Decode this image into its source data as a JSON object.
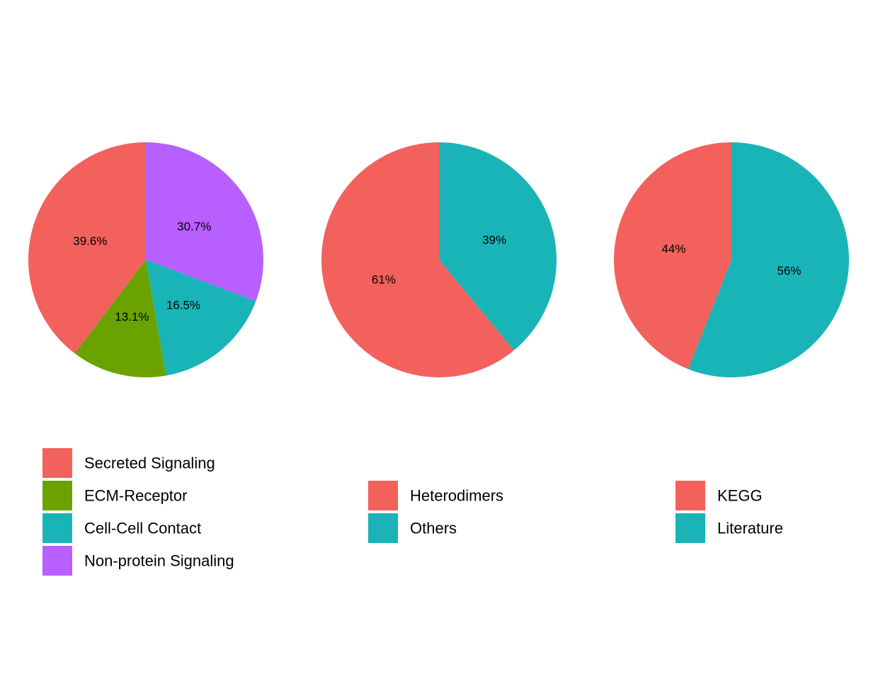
{
  "chart_data": [
    {
      "type": "pie",
      "title": "",
      "start_angle_deg": 0,
      "direction": "clockwise",
      "slices": [
        {
          "label": "Non-protein Signaling",
          "value": 30.7,
          "display": "30.7%",
          "color": "#B75FFF"
        },
        {
          "label": "Cell-Cell Contact",
          "value": 16.5,
          "display": "16.5%",
          "color": "#19B4B8"
        },
        {
          "label": "ECM-Receptor",
          "value": 13.1,
          "display": "13.1%",
          "color": "#6AA200"
        },
        {
          "label": "Secreted Signaling",
          "value": 39.6,
          "display": "39.6%",
          "color": "#F2615C"
        }
      ],
      "legend": {
        "placement": "bottom-left",
        "entries": [
          {
            "label": "Secreted Signaling",
            "color": "#F2615C"
          },
          {
            "label": "ECM-Receptor",
            "color": "#6AA200"
          },
          {
            "label": "Cell-Cell Contact",
            "color": "#19B4B8"
          },
          {
            "label": "Non-protein Signaling",
            "color": "#B75FFF"
          }
        ]
      }
    },
    {
      "type": "pie",
      "title": "",
      "start_angle_deg": 0,
      "direction": "clockwise",
      "slices": [
        {
          "label": "Others",
          "value": 39,
          "display": "39%",
          "color": "#19B4B8"
        },
        {
          "label": "Heterodimers",
          "value": 61,
          "display": "61%",
          "color": "#F2615C"
        }
      ],
      "legend": {
        "placement": "bottom-center",
        "entries": [
          {
            "label": "Heterodimers",
            "color": "#F2615C"
          },
          {
            "label": "Others",
            "color": "#19B4B8"
          }
        ]
      }
    },
    {
      "type": "pie",
      "title": "",
      "start_angle_deg": 0,
      "direction": "clockwise",
      "slices": [
        {
          "label": "Literature",
          "value": 56,
          "display": "56%",
          "color": "#19B4B8"
        },
        {
          "label": "KEGG",
          "value": 44,
          "display": "44%",
          "color": "#F2615C"
        }
      ],
      "legend": {
        "placement": "bottom-right",
        "entries": [
          {
            "label": "KEGG",
            "color": "#F2615C"
          },
          {
            "label": "Literature",
            "color": "#19B4B8"
          }
        ]
      }
    }
  ]
}
